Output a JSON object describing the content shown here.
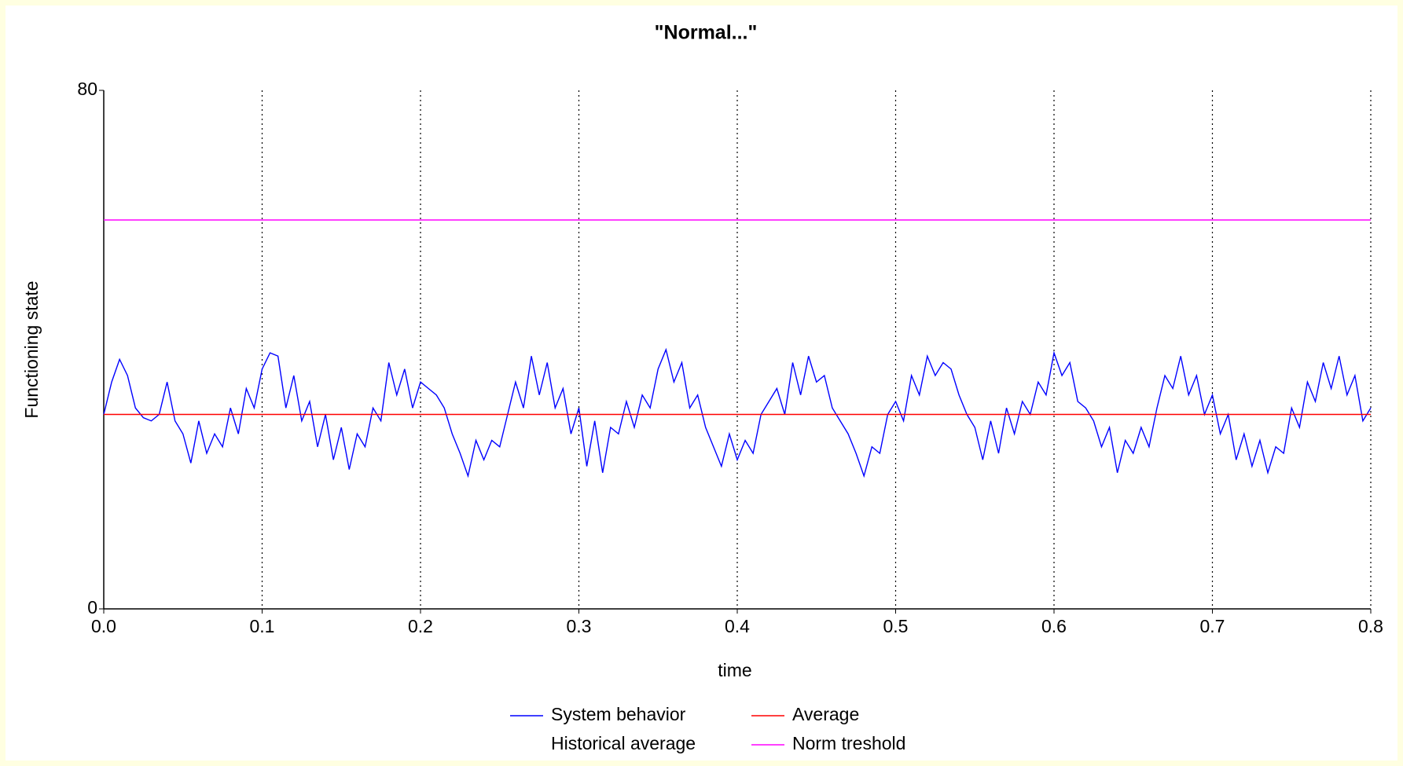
{
  "chart_data": {
    "type": "line",
    "title": "\"Normal...\"",
    "x_label": "time",
    "y_label": "Functioning state",
    "xlim": [
      0,
      0.8
    ],
    "xticks": [
      {
        "value": 0,
        "label": "0.0"
      },
      0.1,
      0.2,
      0.3,
      0.4,
      0.5,
      0.6,
      0.7,
      0.8
    ],
    "ylim": [
      0,
      80
    ],
    "yticks": [
      0,
      80
    ],
    "grid": true,
    "series": [
      {
        "name": "System behavior",
        "color": "#0000ff",
        "x": [
          0,
          0.005,
          0.01,
          0.015,
          0.02,
          0.025,
          0.03,
          0.035,
          0.04,
          0.045,
          0.05,
          0.055,
          0.06,
          0.065,
          0.07,
          0.075,
          0.08,
          0.085,
          0.09,
          0.095,
          0.1,
          0.105,
          0.11,
          0.115,
          0.12,
          0.125,
          0.13,
          0.135,
          0.14,
          0.145,
          0.15,
          0.155,
          0.16,
          0.165,
          0.17,
          0.175,
          0.18,
          0.185,
          0.19,
          0.195,
          0.2,
          0.205,
          0.21,
          0.215,
          0.22,
          0.225,
          0.23,
          0.235,
          0.24,
          0.245,
          0.25,
          0.255,
          0.26,
          0.265,
          0.27,
          0.275,
          0.28,
          0.285,
          0.29,
          0.295,
          0.3,
          0.305,
          0.31,
          0.315,
          0.32,
          0.325,
          0.33,
          0.335,
          0.34,
          0.345,
          0.35,
          0.355,
          0.36,
          0.365,
          0.37,
          0.375,
          0.38,
          0.385,
          0.39,
          0.395,
          0.4,
          0.405,
          0.41,
          0.415,
          0.42,
          0.425,
          0.43,
          0.435,
          0.44,
          0.445,
          0.45,
          0.455,
          0.46,
          0.465,
          0.47,
          0.475,
          0.48,
          0.485,
          0.49,
          0.495,
          0.5,
          0.505,
          0.51,
          0.515,
          0.52,
          0.525,
          0.53,
          0.535,
          0.54,
          0.545,
          0.55,
          0.555,
          0.56,
          0.565,
          0.57,
          0.575,
          0.58,
          0.585,
          0.59,
          0.595,
          0.6,
          0.605,
          0.61,
          0.615,
          0.62,
          0.625,
          0.63,
          0.635,
          0.64,
          0.645,
          0.65,
          0.655,
          0.66,
          0.665,
          0.67,
          0.675,
          0.68,
          0.685,
          0.69,
          0.695,
          0.7,
          0.705,
          0.71,
          0.715,
          0.72,
          0.725,
          0.73,
          0.735,
          0.74,
          0.745,
          0.75,
          0.755,
          0.76,
          0.765,
          0.77,
          0.775,
          0.78,
          0.785,
          0.79,
          0.795,
          0.8
        ],
        "values": [
          30,
          35,
          38.5,
          36,
          31,
          29.5,
          29,
          30,
          35,
          29,
          27,
          22.5,
          29,
          24,
          27,
          25,
          31,
          27,
          34,
          31,
          37,
          39.5,
          39,
          31,
          36,
          29,
          32,
          25,
          30,
          23,
          28,
          21.5,
          27,
          25,
          31,
          29,
          38,
          33,
          37,
          31,
          35,
          34,
          33,
          31,
          27,
          24,
          20.5,
          26,
          23,
          26,
          25,
          30,
          35,
          31,
          39,
          33,
          38,
          31,
          34,
          27,
          31,
          22,
          29,
          21,
          28,
          27,
          32,
          28,
          33,
          31,
          37,
          40,
          35,
          38,
          31,
          33,
          28,
          25,
          22,
          27,
          23,
          26,
          24,
          30,
          32,
          34,
          30,
          38,
          33,
          39,
          35,
          36,
          31,
          29,
          27,
          24,
          20.5,
          25,
          24,
          30,
          32,
          29,
          36,
          33,
          39,
          36,
          38,
          37,
          33,
          30,
          28,
          23,
          29,
          24,
          31,
          27,
          32,
          30,
          35,
          33,
          39.5,
          36,
          38,
          32,
          31,
          29,
          25,
          28,
          21,
          26,
          24,
          28,
          25,
          31,
          36,
          34,
          39,
          33,
          36,
          30,
          33,
          27,
          30,
          23,
          27,
          22,
          26,
          21,
          25,
          24,
          31,
          28,
          35,
          32,
          38,
          34,
          39,
          33,
          36,
          29,
          31
        ]
      },
      {
        "name": "Average",
        "color": "#ff0000",
        "x": [
          0,
          0.8
        ],
        "values": [
          30,
          30
        ]
      },
      {
        "name": "Historical average"
      },
      {
        "name": "Norm treshold",
        "color": "#ff00ff",
        "x": [
          0,
          0.8
        ],
        "values": [
          60,
          60
        ]
      }
    ]
  }
}
